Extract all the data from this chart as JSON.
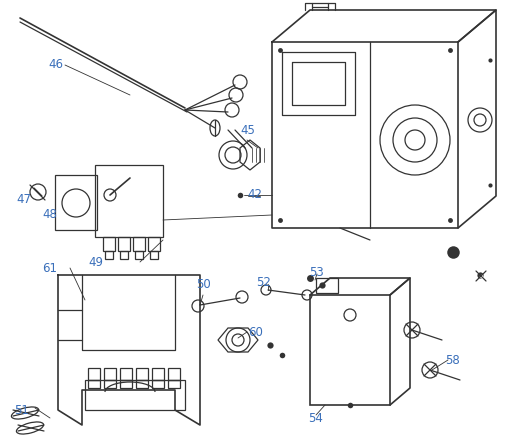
{
  "bg_color": "#ffffff",
  "line_color": "#333333",
  "label_color": "#3a6fba",
  "figsize": [
    5.27,
    4.44
  ],
  "dpi": 100
}
